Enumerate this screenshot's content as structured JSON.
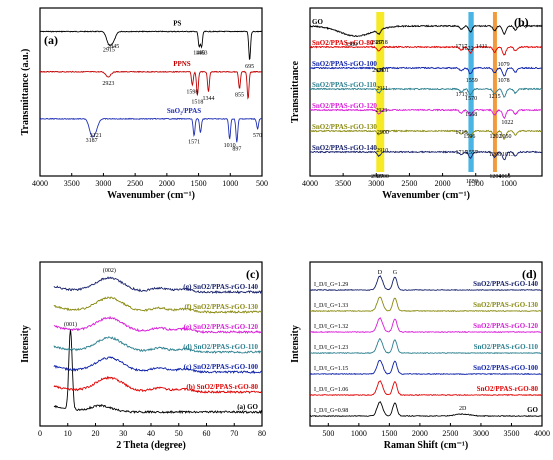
{
  "chart_data": [
    {
      "panel": "(a)",
      "type": "line",
      "xlabel": "Wavenumber (cm⁻¹)",
      "ylabel": "Transmittance (a.u.)",
      "xlim": [
        4000,
        500
      ],
      "x_ticks": [
        "4000",
        "3500",
        "3000",
        "2500",
        "2000",
        "1500",
        "1000",
        "500"
      ],
      "series": [
        {
          "name": "PS",
          "color": "#000000",
          "offset": 0.86,
          "peaks": [
            [
              2915,
              0.07
            ],
            [
              2845,
              0.05
            ],
            [
              1490,
              0.09
            ],
            [
              1453,
              0.09
            ],
            [
              695,
              0.17
            ]
          ],
          "labels": [
            {
              "text": "2915",
              "wn": 2915
            },
            {
              "text": "2845",
              "wn": 2845
            },
            {
              "text": "1490",
              "wn": 1490
            },
            {
              "text": "1453",
              "wn": 1453
            },
            {
              "text": "695",
              "wn": 695
            }
          ]
        },
        {
          "name": "PPNS",
          "color": "#c00000",
          "offset": 0.62,
          "peaks": [
            [
              2923,
              0.03
            ],
            [
              1598,
              0.08
            ],
            [
              1518,
              0.14
            ],
            [
              1344,
              0.12
            ],
            [
              855,
              0.1
            ],
            [
              720,
              0.16
            ]
          ],
          "labels": [
            {
              "text": "2923",
              "wn": 2923
            },
            {
              "text": "1598",
              "wn": 1598
            },
            {
              "text": "1518",
              "wn": 1518
            },
            {
              "text": "1344",
              "wn": 1344
            },
            {
              "text": "855",
              "wn": 855
            }
          ]
        },
        {
          "name": "SnO₂/PPAS",
          "color": "#1f2fb4",
          "offset": 0.34,
          "peaks": [
            [
              3187,
              0.09
            ],
            [
              3121,
              0.06
            ],
            [
              1571,
              0.1
            ],
            [
              1470,
              0.08
            ],
            [
              1010,
              0.12
            ],
            [
              897,
              0.14
            ],
            [
              570,
              0.06
            ]
          ],
          "labels": [
            {
              "text": "3187",
              "wn": 3187
            },
            {
              "text": "3121",
              "wn": 3121
            },
            {
              "text": "1571",
              "wn": 1571
            },
            {
              "text": "1010",
              "wn": 1010
            },
            {
              "text": "897",
              "wn": 897
            },
            {
              "text": "570",
              "wn": 570
            }
          ]
        }
      ]
    },
    {
      "panel": "(b)",
      "type": "line",
      "xlabel": "Wavenumber (cm⁻¹)",
      "ylabel": "Transmittance",
      "xlim": [
        4000,
        500
      ],
      "x_ticks": [
        "4000",
        "3500",
        "3000",
        "2500",
        "2000",
        "1500",
        "1000"
      ],
      "annotations": [
        "3380",
        "2987",
        "2918",
        "1717",
        "1622",
        "1411",
        "2971",
        "2901",
        "1079",
        "2911",
        "1559",
        "1215",
        "1078",
        "1713",
        "1570",
        "2923",
        "1568",
        "1022",
        "1716",
        "1596",
        "1050",
        "1202",
        "2900",
        "2910",
        "1715",
        "1557",
        "1208",
        "1013",
        "2987",
        "2900",
        "1558",
        "1204",
        "1065"
      ],
      "series": [
        {
          "name": "GO",
          "color": "#000000"
        },
        {
          "name": "SnO2/PPAS-rGO-80",
          "color": "#e00000"
        },
        {
          "name": "SnO2/PPAS-rGO-100",
          "color": "#0b1fa8"
        },
        {
          "name": "SnO2/PPAS-rGO-110",
          "color": "#2b7f8e"
        },
        {
          "name": "SnO2/PPAS-rGO-120",
          "color": "#d81bd8"
        },
        {
          "name": "SnO2/PPAS-rGO-130",
          "color": "#8a8a10"
        },
        {
          "name": "SnO2/PPAS-rGO-140",
          "color": "#16206a"
        }
      ]
    },
    {
      "panel": "(c)",
      "type": "line",
      "xlabel": "2 Theta (degree)",
      "ylabel": "Intensity",
      "xlim": [
        0,
        80
      ],
      "x_ticks": [
        "0",
        "10",
        "20",
        "30",
        "40",
        "50",
        "60",
        "70",
        "80"
      ],
      "peak_labels": [
        "(002)",
        "(001)"
      ],
      "series": [
        {
          "name": "(a)  GO",
          "color": "#000000"
        },
        {
          "name": "(b)  SnO2/PPAS-rGO-80",
          "color": "#e00000"
        },
        {
          "name": "(c)  SnO2/PPAS-rGO-100",
          "color": "#0b1fa8"
        },
        {
          "name": "(d)  SnO2/PPAS-rGO-110",
          "color": "#2b7f8e"
        },
        {
          "name": "(e)  SnO2/PPAS-rGO-120",
          "color": "#d81bd8"
        },
        {
          "name": "(f)  SnO2/PPAS-rGO-130",
          "color": "#8a8a10"
        },
        {
          "name": "(g)  SnO2/PPAS-rGO-140",
          "color": "#16206a"
        }
      ]
    },
    {
      "panel": "(d)",
      "type": "line",
      "xlabel": "Raman Shift (cm⁻¹)",
      "ylabel": "Intensity",
      "xlim": [
        200,
        4000
      ],
      "x_ticks": [
        "500",
        "1000",
        "1500",
        "2000",
        "2500",
        "3000",
        "3500",
        "4000"
      ],
      "band_labels": [
        "D",
        "G",
        "2D"
      ],
      "series": [
        {
          "name": "GO",
          "color": "#000000",
          "ratio": "I_D/I_G=0.98"
        },
        {
          "name": "SnO2/PPAS-rGO-80",
          "color": "#e00000",
          "ratio": "I_D/I_G=1.06"
        },
        {
          "name": "SnO2/PPAS-rGO-100",
          "color": "#0b1fa8",
          "ratio": "I_D/I_G=1.15"
        },
        {
          "name": "SnO2/PPAS-rGO-110",
          "color": "#2b7f8e",
          "ratio": "I_D/I_G=1.23"
        },
        {
          "name": "SnO2/PPAS-rGO-120",
          "color": "#d81bd8",
          "ratio": "I_D/I_G=1.32"
        },
        {
          "name": "SnO2/PPAS-rGO-130",
          "color": "#8a8a10",
          "ratio": "I_D/I_G=1.33"
        },
        {
          "name": "SnO2/PPAS-rGO-140",
          "color": "#16206a",
          "ratio": "I_D/I_G=1.29"
        }
      ]
    }
  ]
}
